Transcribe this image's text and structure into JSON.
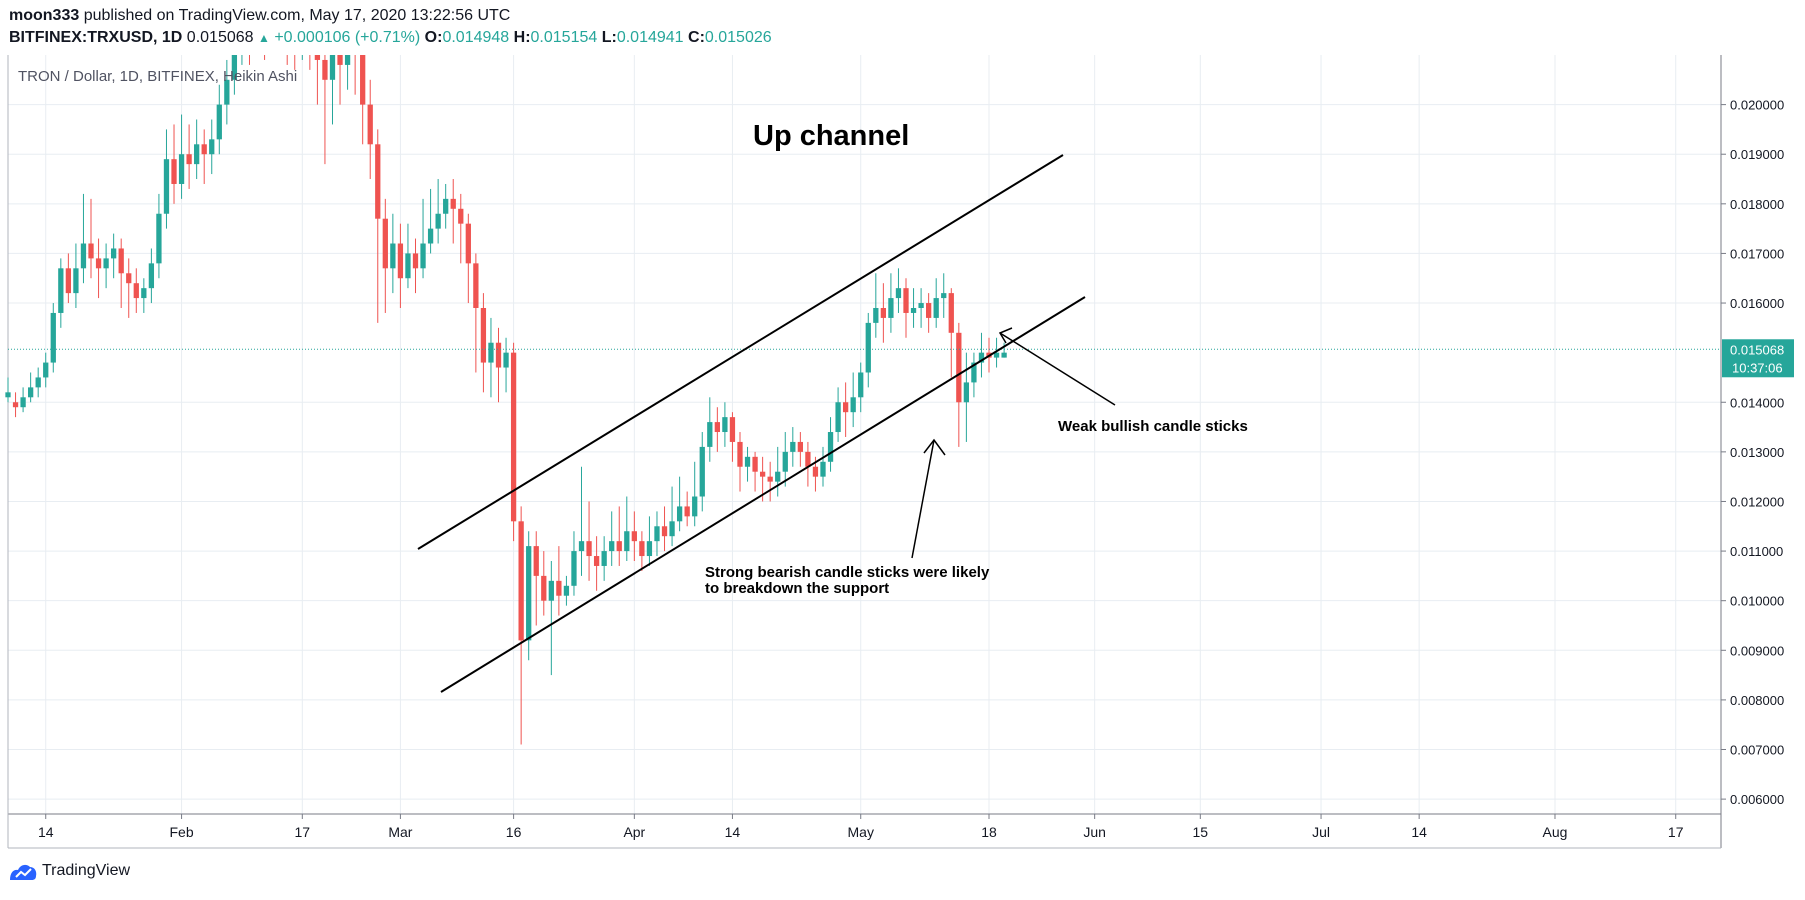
{
  "header": {
    "user": "moon333",
    "published": "published on TradingView.com, May 17, 2020 13:22:56 UTC",
    "symbol": "BITFINEX:TRXUSD, 1D",
    "last": "0.015068",
    "change": "+0.000106 (+0.71%)",
    "o_label": "O:",
    "o_value": "0.014948",
    "h_label": "H:",
    "h_value": "0.015154",
    "l_label": "L:",
    "l_value": "0.014941",
    "c_label": "C:",
    "c_value": "0.015026"
  },
  "footer": {
    "brand": "TradingView"
  },
  "colors": {
    "up": "#26a69a",
    "down": "#ef5350",
    "grid": "#e8edf2",
    "axis": "#787b86",
    "price_line": "#26a69a",
    "annotation": "#000000"
  },
  "chart_data": {
    "type": "candlestick",
    "title": "TRON / Dollar, 1D, BITFINEX, Heikin Ashi",
    "y_range": [
      0.0057,
      0.021
    ],
    "y_ticks": [
      "0.020000",
      "0.019000",
      "0.018000",
      "0.017000",
      "0.016000",
      "0.014000",
      "0.013000",
      "0.012000",
      "0.011000",
      "0.010000",
      "0.009000",
      "0.008000",
      "0.007000",
      "0.006000"
    ],
    "x_range": [
      "2020-01-09",
      "2020-08-23"
    ],
    "x_ticks": [
      {
        "date": "2020-01-14",
        "label": "14"
      },
      {
        "date": "2020-02-01",
        "label": "Feb"
      },
      {
        "date": "2020-02-17",
        "label": "17"
      },
      {
        "date": "2020-03-01",
        "label": "Mar"
      },
      {
        "date": "2020-03-16",
        "label": "16"
      },
      {
        "date": "2020-04-01",
        "label": "Apr"
      },
      {
        "date": "2020-04-14",
        "label": "14"
      },
      {
        "date": "2020-05-01",
        "label": "May"
      },
      {
        "date": "2020-05-18",
        "label": "18"
      },
      {
        "date": "2020-06-01",
        "label": "Jun"
      },
      {
        "date": "2020-06-15",
        "label": "15"
      },
      {
        "date": "2020-07-01",
        "label": "Jul"
      },
      {
        "date": "2020-07-14",
        "label": "14"
      },
      {
        "date": "2020-08-01",
        "label": "Aug"
      },
      {
        "date": "2020-08-17",
        "label": "17"
      }
    ],
    "last_price": "0.015068",
    "countdown": "10:37:06",
    "start_date": "2020-01-09",
    "candles": [
      [
        0.0141,
        0.0142,
        0.014,
        0.0145
      ],
      [
        0.014,
        0.0139,
        0.0137,
        0.0142
      ],
      [
        0.0139,
        0.0141,
        0.0138,
        0.0143
      ],
      [
        0.0141,
        0.0143,
        0.014,
        0.0146
      ],
      [
        0.0143,
        0.0145,
        0.0141,
        0.0147
      ],
      [
        0.0145,
        0.0148,
        0.0143,
        0.015
      ],
      [
        0.0148,
        0.0158,
        0.0146,
        0.016
      ],
      [
        0.0158,
        0.0167,
        0.0155,
        0.0169
      ],
      [
        0.0167,
        0.0162,
        0.016,
        0.017
      ],
      [
        0.0162,
        0.0167,
        0.0159,
        0.0172
      ],
      [
        0.0167,
        0.0172,
        0.0164,
        0.0182
      ],
      [
        0.0172,
        0.0169,
        0.0165,
        0.0181
      ],
      [
        0.0169,
        0.0167,
        0.0161,
        0.0173
      ],
      [
        0.0167,
        0.0169,
        0.0163,
        0.0172
      ],
      [
        0.0169,
        0.0171,
        0.0165,
        0.0174
      ],
      [
        0.0171,
        0.0166,
        0.0159,
        0.0173
      ],
      [
        0.0166,
        0.0164,
        0.0157,
        0.0169
      ],
      [
        0.0164,
        0.0161,
        0.0158,
        0.0167
      ],
      [
        0.0161,
        0.0163,
        0.0158,
        0.0165
      ],
      [
        0.0163,
        0.0168,
        0.016,
        0.0171
      ],
      [
        0.0168,
        0.0178,
        0.0165,
        0.0182
      ],
      [
        0.0178,
        0.0189,
        0.0175,
        0.0195
      ],
      [
        0.0189,
        0.0184,
        0.018,
        0.0196
      ],
      [
        0.0184,
        0.019,
        0.0181,
        0.0198
      ],
      [
        0.019,
        0.0188,
        0.0183,
        0.0196
      ],
      [
        0.0188,
        0.0192,
        0.0185,
        0.0197
      ],
      [
        0.0192,
        0.019,
        0.0184,
        0.0195
      ],
      [
        0.019,
        0.0193,
        0.0186,
        0.0197
      ],
      [
        0.0193,
        0.02,
        0.019,
        0.0204
      ],
      [
        0.02,
        0.0205,
        0.0196,
        0.0209
      ],
      [
        0.0205,
        0.0212,
        0.0202,
        0.0216
      ],
      [
        0.0212,
        0.0216,
        0.0208,
        0.0222
      ],
      [
        0.0216,
        0.0214,
        0.0208,
        0.0221
      ],
      [
        0.0214,
        0.0217,
        0.021,
        0.0222
      ],
      [
        0.0217,
        0.0215,
        0.0209,
        0.0221
      ],
      [
        0.0215,
        0.0219,
        0.0211,
        0.0223
      ],
      [
        0.0219,
        0.0217,
        0.0212,
        0.0224
      ],
      [
        0.0217,
        0.0214,
        0.0208,
        0.0222
      ],
      [
        0.0214,
        0.0212,
        0.0207,
        0.0218
      ],
      [
        0.0212,
        0.0216,
        0.0209,
        0.0219
      ],
      [
        0.0216,
        0.0213,
        0.0207,
        0.0219
      ],
      [
        0.0213,
        0.0209,
        0.02,
        0.0215
      ],
      [
        0.0209,
        0.0205,
        0.0188,
        0.0213
      ],
      [
        0.0205,
        0.021,
        0.0196,
        0.0214
      ],
      [
        0.021,
        0.0208,
        0.02,
        0.0214
      ],
      [
        0.0208,
        0.0212,
        0.0203,
        0.0216
      ],
      [
        0.0212,
        0.021,
        0.0202,
        0.0215
      ],
      [
        0.021,
        0.02,
        0.0192,
        0.0212
      ],
      [
        0.02,
        0.0192,
        0.0185,
        0.0205
      ],
      [
        0.0192,
        0.0177,
        0.0156,
        0.0195
      ],
      [
        0.0177,
        0.0167,
        0.0158,
        0.0181
      ],
      [
        0.0167,
        0.0172,
        0.0162,
        0.0178
      ],
      [
        0.0172,
        0.0165,
        0.0159,
        0.0176
      ],
      [
        0.0165,
        0.017,
        0.0163,
        0.0176
      ],
      [
        0.017,
        0.0167,
        0.0162,
        0.0173
      ],
      [
        0.0167,
        0.0172,
        0.0165,
        0.0181
      ],
      [
        0.0172,
        0.0175,
        0.017,
        0.0183
      ],
      [
        0.0175,
        0.0178,
        0.0172,
        0.0185
      ],
      [
        0.0178,
        0.0181,
        0.0175,
        0.0184
      ],
      [
        0.0181,
        0.0179,
        0.0172,
        0.0185
      ],
      [
        0.0179,
        0.0176,
        0.0168,
        0.0182
      ],
      [
        0.0176,
        0.0168,
        0.016,
        0.0178
      ],
      [
        0.0168,
        0.0159,
        0.0146,
        0.017
      ],
      [
        0.0159,
        0.0148,
        0.0142,
        0.0162
      ],
      [
        0.0148,
        0.0152,
        0.0141,
        0.0157
      ],
      [
        0.0152,
        0.0147,
        0.014,
        0.0155
      ],
      [
        0.0147,
        0.015,
        0.0142,
        0.0153
      ],
      [
        0.015,
        0.0116,
        0.0112,
        0.0152
      ],
      [
        0.0116,
        0.0092,
        0.0071,
        0.0119
      ],
      [
        0.0092,
        0.0111,
        0.0088,
        0.0114
      ],
      [
        0.0111,
        0.0105,
        0.0095,
        0.0114
      ],
      [
        0.0105,
        0.01,
        0.0097,
        0.011
      ],
      [
        0.01,
        0.0104,
        0.0085,
        0.0108
      ],
      [
        0.0104,
        0.0101,
        0.0097,
        0.0111
      ],
      [
        0.0101,
        0.0103,
        0.0099,
        0.0105
      ],
      [
        0.0103,
        0.011,
        0.0101,
        0.0114
      ],
      [
        0.011,
        0.0112,
        0.0105,
        0.0127
      ],
      [
        0.0112,
        0.0109,
        0.0104,
        0.012
      ],
      [
        0.0109,
        0.0107,
        0.0102,
        0.0113
      ],
      [
        0.0107,
        0.011,
        0.0104,
        0.0113
      ],
      [
        0.011,
        0.0112,
        0.0107,
        0.0118
      ],
      [
        0.0112,
        0.011,
        0.0107,
        0.0119
      ],
      [
        0.011,
        0.0114,
        0.0108,
        0.0121
      ],
      [
        0.0114,
        0.0112,
        0.0108,
        0.0118
      ],
      [
        0.0112,
        0.0109,
        0.0106,
        0.0114
      ],
      [
        0.0109,
        0.0112,
        0.0107,
        0.0117
      ],
      [
        0.0112,
        0.0115,
        0.0109,
        0.0118
      ],
      [
        0.0115,
        0.0113,
        0.011,
        0.0119
      ],
      [
        0.0113,
        0.0116,
        0.0111,
        0.0123
      ],
      [
        0.0116,
        0.0119,
        0.0114,
        0.0125
      ],
      [
        0.0119,
        0.0117,
        0.0115,
        0.0122
      ],
      [
        0.0117,
        0.0121,
        0.0115,
        0.0128
      ],
      [
        0.0121,
        0.0131,
        0.0118,
        0.0134
      ],
      [
        0.0131,
        0.0136,
        0.0128,
        0.0141
      ],
      [
        0.0136,
        0.0134,
        0.013,
        0.0139
      ],
      [
        0.0134,
        0.0137,
        0.0131,
        0.014
      ],
      [
        0.0137,
        0.0132,
        0.0128,
        0.0138
      ],
      [
        0.0132,
        0.0127,
        0.0122,
        0.0134
      ],
      [
        0.0127,
        0.0129,
        0.0124,
        0.0131
      ],
      [
        0.0129,
        0.0126,
        0.0122,
        0.013
      ],
      [
        0.0126,
        0.0125,
        0.012,
        0.0129
      ],
      [
        0.0125,
        0.0124,
        0.012,
        0.0128
      ],
      [
        0.0124,
        0.0126,
        0.0121,
        0.0131
      ],
      [
        0.0126,
        0.013,
        0.0123,
        0.0134
      ],
      [
        0.013,
        0.0132,
        0.0127,
        0.0135
      ],
      [
        0.0132,
        0.013,
        0.0127,
        0.0134
      ],
      [
        0.013,
        0.0127,
        0.0123,
        0.0132
      ],
      [
        0.0127,
        0.0125,
        0.0122,
        0.0129
      ],
      [
        0.0125,
        0.0128,
        0.0123,
        0.0131
      ],
      [
        0.0128,
        0.0134,
        0.0126,
        0.0137
      ],
      [
        0.0134,
        0.014,
        0.0132,
        0.0143
      ],
      [
        0.014,
        0.0138,
        0.0133,
        0.0144
      ],
      [
        0.0138,
        0.0141,
        0.0135,
        0.0146
      ],
      [
        0.0141,
        0.0146,
        0.0138,
        0.0148
      ],
      [
        0.0146,
        0.0156,
        0.0143,
        0.0158
      ],
      [
        0.0156,
        0.0159,
        0.0153,
        0.0166
      ],
      [
        0.0159,
        0.0157,
        0.0152,
        0.0164
      ],
      [
        0.0157,
        0.0161,
        0.0154,
        0.0166
      ],
      [
        0.0161,
        0.0163,
        0.0158,
        0.0167
      ],
      [
        0.0163,
        0.0158,
        0.0153,
        0.0165
      ],
      [
        0.0158,
        0.0159,
        0.0155,
        0.0163
      ],
      [
        0.0159,
        0.016,
        0.0155,
        0.0163
      ],
      [
        0.016,
        0.0157,
        0.0154,
        0.0162
      ],
      [
        0.0157,
        0.0161,
        0.0155,
        0.0165
      ],
      [
        0.0161,
        0.0162,
        0.0157,
        0.0166
      ],
      [
        0.0162,
        0.0154,
        0.0145,
        0.0163
      ],
      [
        0.0154,
        0.014,
        0.0131,
        0.0156
      ],
      [
        0.014,
        0.0144,
        0.0132,
        0.015
      ],
      [
        0.0144,
        0.0148,
        0.0141,
        0.015
      ],
      [
        0.0148,
        0.015,
        0.0145,
        0.0154
      ],
      [
        0.015,
        0.0149,
        0.0146,
        0.0153
      ],
      [
        0.0149,
        0.015,
        0.0147,
        0.0153
      ],
      [
        0.0149,
        0.015,
        0.0149,
        0.0152
      ]
    ],
    "annotations": [
      {
        "text": "Up channel"
      },
      {
        "text": "Weak bullish candle sticks"
      },
      {
        "text": "Strong bearish candle sticks were likely"
      },
      {
        "text": "to breakdown the support"
      }
    ]
  }
}
